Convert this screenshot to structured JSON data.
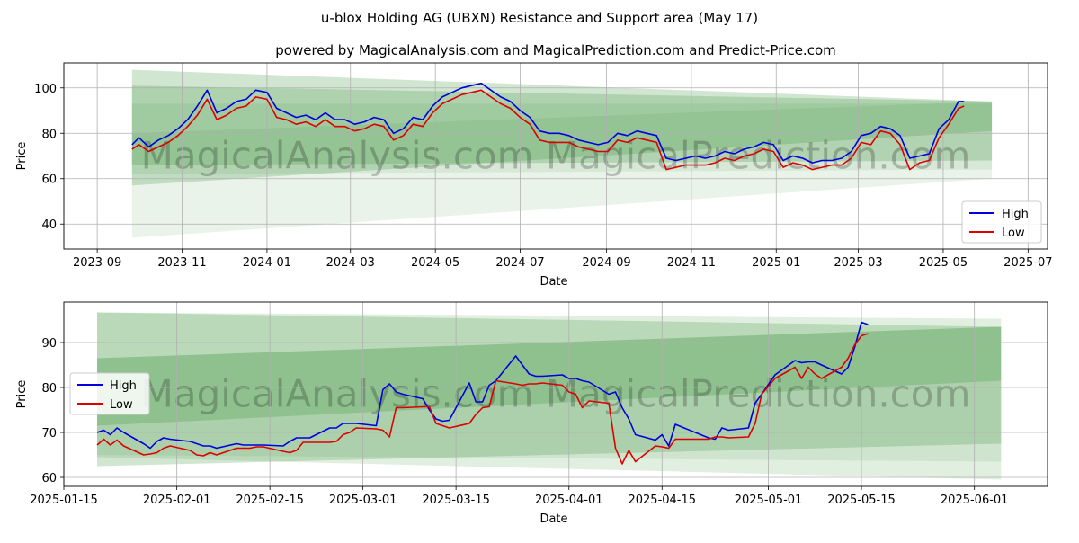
{
  "title": "u-blox Holding AG (UBXN) Resistance and Support area (May 17)",
  "subtitle": "powered by MagicalAnalysis.com and MagicalPrediction.com and Predict-Price.com",
  "watermark": "MagicalAnalysis.com   MagicalPrediction.com",
  "colors": {
    "high": "#0000dd",
    "low": "#dd0000",
    "band": "#2e8b2e",
    "grid": "#b0b0b0"
  },
  "chart_data": [
    {
      "type": "line",
      "x_type": "date",
      "xlabel": "Date",
      "ylabel": "Price",
      "xlim": [
        "2023-08-08",
        "2025-07-15"
      ],
      "ylim": [
        29,
        111
      ],
      "grid": true,
      "legend_position": "lower-right",
      "xticks": [
        "2023-09",
        "2023-11",
        "2024-01",
        "2024-03",
        "2024-05",
        "2024-07",
        "2024-09",
        "2024-11",
        "2025-01",
        "2025-03",
        "2025-05",
        "2025-07"
      ],
      "yticks": [
        "40",
        "60",
        "80",
        "100"
      ],
      "bands": [
        {
          "x": [
            "2023-09-26",
            "2025-06-05"
          ],
          "upper": [
            108,
            94
          ],
          "lower": [
            57,
            81
          ],
          "opacity": 0.22
        },
        {
          "x": [
            "2023-09-26",
            "2025-06-05"
          ],
          "upper": [
            101,
            94
          ],
          "lower": [
            66,
            68
          ],
          "opacity": 0.22
        },
        {
          "x": [
            "2023-09-26",
            "2025-06-05"
          ],
          "upper": [
            93,
            93
          ],
          "lower": [
            62,
            64
          ],
          "opacity": 0.1
        },
        {
          "x": [
            "2023-09-26",
            "2025-06-05"
          ],
          "upper": [
            80,
            94
          ],
          "lower": [
            34,
            60
          ],
          "opacity": 0.1
        }
      ],
      "series": [
        {
          "name": "High",
          "color": "#0000dd",
          "x": [
            "2023-09-26",
            "2023-10-01",
            "2023-10-08",
            "2023-10-15",
            "2023-10-22",
            "2023-10-29",
            "2023-11-05",
            "2023-11-12",
            "2023-11-19",
            "2023-11-26",
            "2023-12-03",
            "2023-12-10",
            "2023-12-17",
            "2023-12-24",
            "2024-01-01",
            "2024-01-08",
            "2024-01-15",
            "2024-01-22",
            "2024-01-29",
            "2024-02-05",
            "2024-02-12",
            "2024-02-19",
            "2024-02-26",
            "2024-03-04",
            "2024-03-11",
            "2024-03-18",
            "2024-03-25",
            "2024-04-01",
            "2024-04-08",
            "2024-04-15",
            "2024-04-22",
            "2024-04-29",
            "2024-05-06",
            "2024-05-13",
            "2024-05-20",
            "2024-05-27",
            "2024-06-03",
            "2024-06-10",
            "2024-06-17",
            "2024-06-24",
            "2024-07-01",
            "2024-07-08",
            "2024-07-15",
            "2024-07-22",
            "2024-07-29",
            "2024-08-05",
            "2024-08-12",
            "2024-08-19",
            "2024-08-26",
            "2024-09-02",
            "2024-09-09",
            "2024-09-16",
            "2024-09-23",
            "2024-09-30",
            "2024-10-07",
            "2024-10-14",
            "2024-10-21",
            "2024-10-28",
            "2024-11-04",
            "2024-11-11",
            "2024-11-18",
            "2024-11-25",
            "2024-12-02",
            "2024-12-09",
            "2024-12-16",
            "2024-12-23",
            "2024-12-30",
            "2025-01-06",
            "2025-01-13",
            "2025-01-20",
            "2025-01-27",
            "2025-02-03",
            "2025-02-10",
            "2025-02-17",
            "2025-02-24",
            "2025-03-03",
            "2025-03-10",
            "2025-03-17",
            "2025-03-24",
            "2025-03-31",
            "2025-04-07",
            "2025-04-14",
            "2025-04-21",
            "2025-04-28",
            "2025-05-05",
            "2025-05-12",
            "2025-05-16"
          ],
          "values": [
            75,
            78,
            74,
            77,
            79,
            82,
            86,
            92,
            99,
            89,
            91,
            94,
            95,
            99,
            98,
            91,
            89,
            87,
            88,
            86,
            89,
            86,
            86,
            84,
            85,
            87,
            86,
            80,
            82,
            87,
            86,
            92,
            96,
            98,
            100,
            101,
            102,
            99,
            96,
            94,
            90,
            87,
            81,
            80,
            80,
            79,
            77,
            76,
            75,
            76,
            80,
            79,
            81,
            80,
            79,
            69,
            68,
            69,
            70,
            69,
            70,
            72,
            71,
            73,
            74,
            76,
            75,
            68,
            70,
            69,
            67,
            68,
            68,
            69,
            72,
            79,
            80,
            83,
            82,
            79,
            69,
            70,
            71,
            82,
            86,
            94,
            94
          ]
        },
        {
          "name": "Low",
          "color": "#dd0000",
          "x": [
            "2023-09-26",
            "2023-10-01",
            "2023-10-08",
            "2023-10-15",
            "2023-10-22",
            "2023-10-29",
            "2023-11-05",
            "2023-11-12",
            "2023-11-19",
            "2023-11-26",
            "2023-12-03",
            "2023-12-10",
            "2023-12-17",
            "2023-12-24",
            "2024-01-01",
            "2024-01-08",
            "2024-01-15",
            "2024-01-22",
            "2024-01-29",
            "2024-02-05",
            "2024-02-12",
            "2024-02-19",
            "2024-02-26",
            "2024-03-04",
            "2024-03-11",
            "2024-03-18",
            "2024-03-25",
            "2024-04-01",
            "2024-04-08",
            "2024-04-15",
            "2024-04-22",
            "2024-04-29",
            "2024-05-06",
            "2024-05-13",
            "2024-05-20",
            "2024-05-27",
            "2024-06-03",
            "2024-06-10",
            "2024-06-17",
            "2024-06-24",
            "2024-07-01",
            "2024-07-08",
            "2024-07-15",
            "2024-07-22",
            "2024-07-29",
            "2024-08-05",
            "2024-08-12",
            "2024-08-19",
            "2024-08-26",
            "2024-09-02",
            "2024-09-09",
            "2024-09-16",
            "2024-09-23",
            "2024-09-30",
            "2024-10-07",
            "2024-10-14",
            "2024-10-21",
            "2024-10-28",
            "2024-11-04",
            "2024-11-11",
            "2024-11-18",
            "2024-11-25",
            "2024-12-02",
            "2024-12-09",
            "2024-12-16",
            "2024-12-23",
            "2024-12-30",
            "2025-01-06",
            "2025-01-13",
            "2025-01-20",
            "2025-01-27",
            "2025-02-03",
            "2025-02-10",
            "2025-02-17",
            "2025-02-24",
            "2025-03-03",
            "2025-03-10",
            "2025-03-17",
            "2025-03-24",
            "2025-03-31",
            "2025-04-07",
            "2025-04-14",
            "2025-04-21",
            "2025-04-28",
            "2025-05-05",
            "2025-05-12",
            "2025-05-16"
          ],
          "values": [
            73,
            75,
            72,
            74,
            76,
            79,
            83,
            88,
            95,
            86,
            88,
            91,
            92,
            96,
            95,
            87,
            86,
            84,
            85,
            83,
            86,
            83,
            83,
            81,
            82,
            84,
            83,
            77,
            79,
            84,
            83,
            89,
            93,
            95,
            97,
            98,
            99,
            96,
            93,
            91,
            87,
            84,
            77,
            76,
            76,
            76,
            74,
            73,
            72,
            72,
            77,
            76,
            78,
            77,
            76,
            64,
            65,
            66,
            66,
            66,
            67,
            69,
            68,
            70,
            71,
            73,
            72,
            65,
            67,
            66,
            64,
            65,
            66,
            66,
            69,
            76,
            75,
            81,
            80,
            75,
            64,
            67,
            68,
            78,
            84,
            91,
            92
          ]
        }
      ]
    },
    {
      "type": "line",
      "x_type": "date",
      "xlabel": "Date",
      "ylabel": "Price",
      "xlim": [
        "2025-01-15",
        "2025-06-12"
      ],
      "ylim": [
        58,
        99
      ],
      "grid": true,
      "legend_position": "upper-left",
      "xticks": [
        "2025-01-15",
        "2025-02-01",
        "2025-02-15",
        "2025-03-01",
        "2025-03-15",
        "2025-04-01",
        "2025-04-15",
        "2025-05-01",
        "2025-05-15",
        "2025-06-01"
      ],
      "yticks": [
        "60",
        "70",
        "80",
        "90"
      ],
      "bands": [
        {
          "x": [
            "2025-01-20",
            "2025-06-05"
          ],
          "upper": [
            96.7,
            95.3
          ],
          "lower": [
            64.5,
            59.5
          ],
          "opacity": 0.14
        },
        {
          "x": [
            "2025-01-20",
            "2025-06-05"
          ],
          "upper": [
            96.7,
            93.5
          ],
          "lower": [
            71.5,
            81.5
          ],
          "opacity": 0.22
        },
        {
          "x": [
            "2025-01-20",
            "2025-06-05"
          ],
          "upper": [
            86.5,
            93.5
          ],
          "lower": [
            62.5,
            67.5
          ],
          "opacity": 0.22
        },
        {
          "x": [
            "2025-01-20",
            "2025-06-05"
          ],
          "upper": [
            86.5,
            93.5
          ],
          "lower": [
            65.0,
            63.5
          ],
          "opacity": 0.1
        }
      ],
      "series": [
        {
          "name": "High",
          "color": "#0000dd",
          "x": [
            "2025-01-20",
            "2025-01-21",
            "2025-01-22",
            "2025-01-23",
            "2025-01-24",
            "2025-01-27",
            "2025-01-28",
            "2025-01-29",
            "2025-01-30",
            "2025-01-31",
            "2025-02-03",
            "2025-02-04",
            "2025-02-05",
            "2025-02-06",
            "2025-02-07",
            "2025-02-10",
            "2025-02-11",
            "2025-02-12",
            "2025-02-13",
            "2025-02-14",
            "2025-02-17",
            "2025-02-18",
            "2025-02-19",
            "2025-02-20",
            "2025-02-21",
            "2025-02-24",
            "2025-02-25",
            "2025-02-26",
            "2025-02-27",
            "2025-02-28",
            "2025-03-03",
            "2025-03-04",
            "2025-03-05",
            "2025-03-06",
            "2025-03-07",
            "2025-03-10",
            "2025-03-11",
            "2025-03-12",
            "2025-03-13",
            "2025-03-14",
            "2025-03-17",
            "2025-03-18",
            "2025-03-19",
            "2025-03-20",
            "2025-03-21",
            "2025-03-24",
            "2025-03-25",
            "2025-03-26",
            "2025-03-27",
            "2025-03-28",
            "2025-03-31",
            "2025-04-01",
            "2025-04-02",
            "2025-04-03",
            "2025-04-04",
            "2025-04-07",
            "2025-04-08",
            "2025-04-09",
            "2025-04-10",
            "2025-04-11",
            "2025-04-14",
            "2025-04-15",
            "2025-04-16",
            "2025-04-17",
            "2025-04-22",
            "2025-04-23",
            "2025-04-24",
            "2025-04-25",
            "2025-04-28",
            "2025-04-29",
            "2025-04-30",
            "2025-05-02",
            "2025-05-05",
            "2025-05-06",
            "2025-05-07",
            "2025-05-08",
            "2025-05-09",
            "2025-05-12",
            "2025-05-13",
            "2025-05-14",
            "2025-05-15",
            "2025-05-16"
          ],
          "values": [
            70.0,
            70.5,
            69.5,
            71.0,
            70.0,
            67.5,
            66.5,
            68.0,
            68.8,
            68.5,
            68.0,
            67.5,
            67.0,
            67.0,
            66.5,
            67.5,
            67.2,
            67.2,
            67.2,
            67.2,
            67.0,
            68.0,
            68.8,
            68.8,
            68.8,
            71.0,
            71.0,
            72.0,
            72.0,
            72.0,
            71.5,
            79.5,
            80.8,
            79.0,
            78.5,
            77.5,
            75.0,
            73.0,
            72.5,
            72.7,
            81.0,
            76.8,
            76.8,
            80.5,
            81.5,
            87.0,
            85.0,
            83.0,
            82.5,
            82.5,
            82.8,
            82.0,
            82.0,
            81.5,
            81.2,
            78.5,
            79.0,
            75.5,
            73.0,
            69.5,
            68.3,
            69.5,
            67.0,
            71.8,
            68.8,
            68.5,
            71.0,
            70.5,
            71.0,
            76.5,
            78.5,
            82.8,
            86.0,
            85.5,
            85.7,
            85.7,
            85.0,
            83.0,
            84.5,
            89.0,
            94.5,
            94.0
          ]
        },
        {
          "name": "Low",
          "color": "#dd0000",
          "x": [
            "2025-01-20",
            "2025-01-21",
            "2025-01-22",
            "2025-01-23",
            "2025-01-24",
            "2025-01-27",
            "2025-01-28",
            "2025-01-29",
            "2025-01-30",
            "2025-01-31",
            "2025-02-03",
            "2025-02-04",
            "2025-02-05",
            "2025-02-06",
            "2025-02-07",
            "2025-02-10",
            "2025-02-11",
            "2025-02-12",
            "2025-02-13",
            "2025-02-14",
            "2025-02-17",
            "2025-02-18",
            "2025-02-19",
            "2025-02-20",
            "2025-02-21",
            "2025-02-24",
            "2025-02-25",
            "2025-02-26",
            "2025-02-27",
            "2025-02-28",
            "2025-03-03",
            "2025-03-04",
            "2025-03-05",
            "2025-03-06",
            "2025-03-07",
            "2025-03-10",
            "2025-03-11",
            "2025-03-12",
            "2025-03-13",
            "2025-03-14",
            "2025-03-17",
            "2025-03-18",
            "2025-03-19",
            "2025-03-20",
            "2025-03-21",
            "2025-03-24",
            "2025-03-25",
            "2025-03-26",
            "2025-03-27",
            "2025-03-28",
            "2025-03-31",
            "2025-04-01",
            "2025-04-02",
            "2025-04-03",
            "2025-04-04",
            "2025-04-07",
            "2025-04-08",
            "2025-04-09",
            "2025-04-10",
            "2025-04-11",
            "2025-04-14",
            "2025-04-15",
            "2025-04-16",
            "2025-04-17",
            "2025-04-22",
            "2025-04-23",
            "2025-04-24",
            "2025-04-25",
            "2025-04-28",
            "2025-04-29",
            "2025-04-30",
            "2025-05-02",
            "2025-05-05",
            "2025-05-06",
            "2025-05-07",
            "2025-05-08",
            "2025-05-09",
            "2025-05-12",
            "2025-05-13",
            "2025-05-14",
            "2025-05-15",
            "2025-05-16"
          ],
          "values": [
            67.2,
            68.5,
            67.2,
            68.3,
            67.0,
            65.0,
            65.2,
            65.5,
            66.5,
            67.0,
            66.0,
            65.0,
            64.8,
            65.5,
            65.0,
            66.5,
            66.5,
            66.5,
            66.8,
            66.8,
            65.8,
            65.5,
            66.0,
            67.8,
            67.8,
            67.8,
            68.0,
            69.5,
            70.0,
            71.0,
            70.8,
            70.5,
            69.0,
            75.5,
            75.5,
            75.7,
            75.7,
            72.0,
            71.5,
            71.0,
            72.0,
            74.0,
            75.5,
            75.7,
            81.5,
            80.8,
            80.5,
            80.8,
            80.8,
            81.0,
            80.5,
            79.0,
            78.5,
            75.5,
            77.0,
            76.5,
            66.5,
            63.0,
            66.0,
            63.5,
            67.0,
            66.8,
            66.5,
            68.5,
            68.5,
            69.0,
            69.0,
            68.8,
            69.0,
            72.0,
            78.5,
            82.0,
            84.5,
            82.0,
            84.5,
            83.0,
            82.0,
            84.5,
            86.5,
            89.5,
            91.5,
            92.0
          ]
        }
      ]
    }
  ]
}
